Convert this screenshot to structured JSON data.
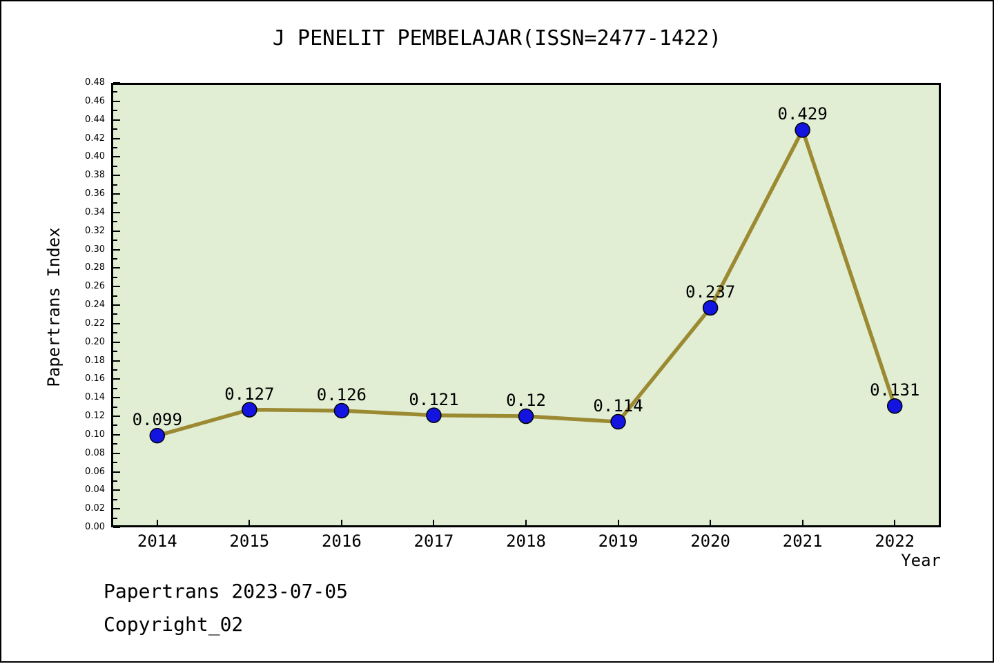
{
  "chart_data": {
    "type": "line",
    "title": "J PENELIT PEMBELAJAR(ISSN=2477-1422)",
    "xlabel": "Year",
    "ylabel": "Papertrans Index",
    "categories": [
      2014,
      2015,
      2016,
      2017,
      2018,
      2019,
      2020,
      2021,
      2022
    ],
    "values": [
      0.099,
      0.127,
      0.126,
      0.121,
      0.12,
      0.114,
      0.237,
      0.429,
      0.131
    ],
    "point_labels": [
      "0.099",
      "0.127",
      "0.126",
      "0.121",
      "0.12",
      "0.114",
      "0.237",
      "0.429",
      "0.131"
    ],
    "series": [
      {
        "name": "Papertrans Index",
        "values": [
          0.099,
          0.127,
          0.126,
          0.121,
          0.12,
          0.114,
          0.237,
          0.429,
          0.131
        ]
      }
    ],
    "xlim": [
      2013.5,
      2022.5
    ],
    "ylim": [
      0,
      0.48
    ],
    "y_major_step": 0.02,
    "y_minor_step": 0.01,
    "y_tick_labels": [
      "0.00",
      "0.02",
      "0.04",
      "0.06",
      "0.08",
      "0.10",
      "0.12",
      "0.14",
      "0.16",
      "0.18",
      "0.20",
      "0.22",
      "0.24",
      "0.26",
      "0.28",
      "0.30",
      "0.32",
      "0.34",
      "0.36",
      "0.38",
      "0.40",
      "0.42",
      "0.44",
      "0.46",
      "0.48"
    ],
    "x_tick_labels": [
      "2014",
      "2015",
      "2016",
      "2017",
      "2018",
      "2019",
      "2020",
      "2021",
      "2022"
    ],
    "grid": false,
    "legend": "none",
    "colors": {
      "line": "#9c8a33",
      "marker_fill": "#1414e0",
      "marker_edge": "#000000",
      "plot_bg": "#e1eed4",
      "figure_bg": "#ffffff",
      "text": "#000000"
    }
  },
  "footer": {
    "papertrans_date": "Papertrans 2023-07-05",
    "copyright": "Copyright_02"
  }
}
